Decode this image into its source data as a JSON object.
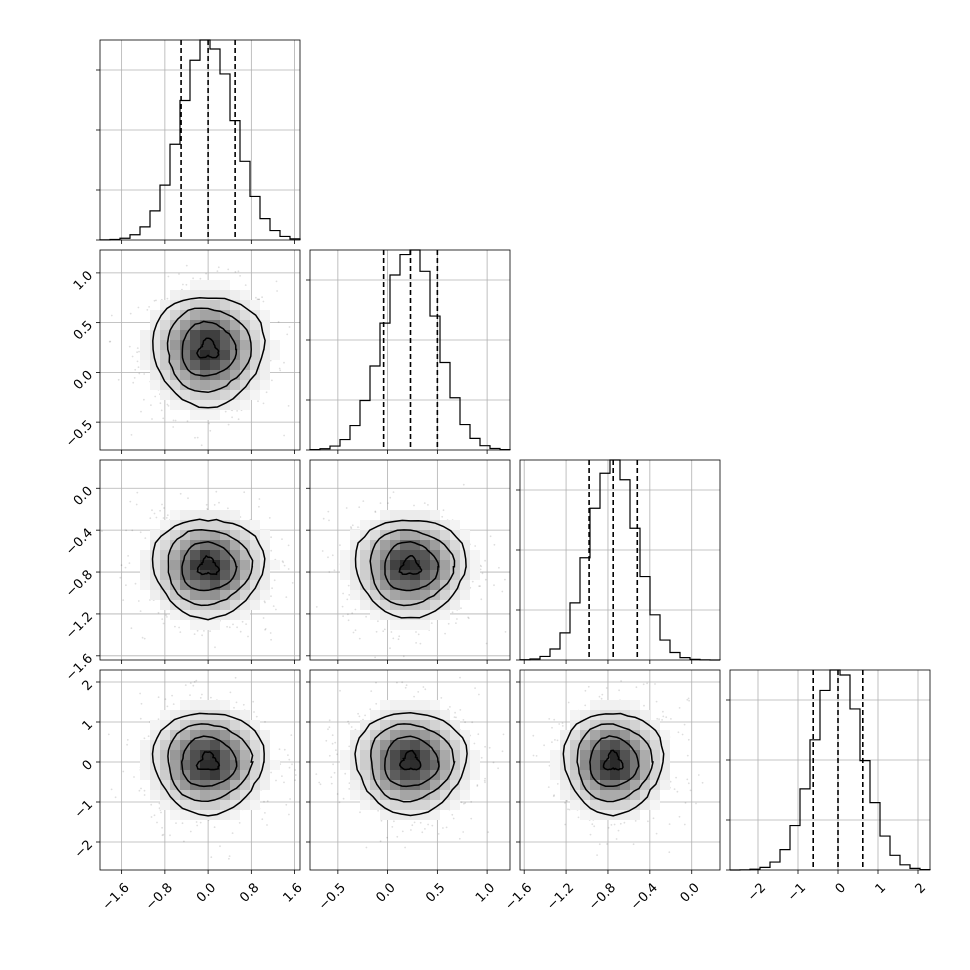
{
  "chart_data": {
    "type": "corner",
    "grid": true,
    "parameters": [
      {
        "range": [
          -2.0,
          1.7
        ],
        "ticks": [
          -1.6,
          -0.8,
          0.0,
          0.8,
          1.6
        ],
        "tick_labels": [
          "−1.6",
          "−0.8",
          "0.0",
          "0.8",
          "1.6"
        ],
        "mean": 0.0,
        "std": 0.5,
        "quantiles": [
          -0.5,
          0.0,
          0.5
        ]
      },
      {
        "range": [
          -0.78,
          1.23
        ],
        "ticks": [
          -0.5,
          0.0,
          0.5,
          1.0
        ],
        "tick_labels": [
          "−0.5",
          "0.0",
          "0.5",
          "1.0"
        ],
        "mean": 0.23,
        "std": 0.27,
        "quantiles": [
          -0.04,
          0.23,
          0.5
        ]
      },
      {
        "range": [
          -1.64,
          0.27
        ],
        "ticks": [
          -1.6,
          -1.2,
          -0.8,
          -0.4,
          0.0
        ],
        "tick_labels": [
          "−1.6",
          "−1.2",
          "−0.8",
          "−0.4",
          "0.0"
        ],
        "mean": -0.75,
        "std": 0.23,
        "quantiles": [
          -0.98,
          -0.75,
          -0.52
        ]
      },
      {
        "range": [
          -2.7,
          2.3
        ],
        "ticks": [
          -2,
          -1,
          0,
          1,
          2
        ],
        "tick_labels": [
          "−2",
          "−1",
          "0",
          "1",
          "2"
        ],
        "mean": 0.0,
        "std": 0.62,
        "quantiles": [
          -0.62,
          0.0,
          0.62
        ]
      }
    ]
  }
}
